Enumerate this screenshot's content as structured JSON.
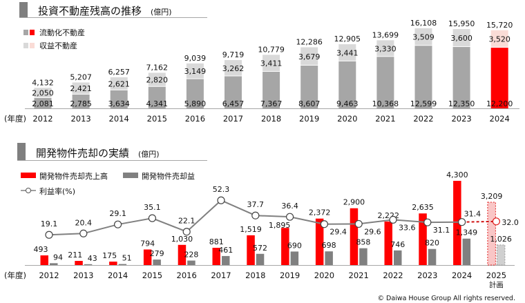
{
  "chart_data": [
    {
      "type": "bar",
      "stacked": true,
      "title": "投資不動産残高の推移",
      "unit": "(億円)",
      "xlabel": "(年度)",
      "categories": [
        "2012",
        "2013",
        "2014",
        "2015",
        "2016",
        "2017",
        "2018",
        "2019",
        "2020",
        "2021",
        "2022",
        "2023",
        "2024"
      ],
      "series": [
        {
          "name": "流動化不動産",
          "values": [
            2081,
            2785,
            3634,
            4341,
            5890,
            6457,
            7367,
            8607,
            9463,
            10368,
            12599,
            12350,
            12200
          ],
          "color": "#a6a6a6",
          "highlight_color": "#ff0000"
        },
        {
          "name": "収益不動産",
          "values": [
            2050,
            2421,
            2621,
            2820,
            3149,
            3262,
            3411,
            3679,
            3441,
            3330,
            3509,
            3600,
            3520
          ],
          "color": "#d9d9d9",
          "highlight_color": "#fadcd6"
        }
      ],
      "totals": [
        4132,
        5207,
        6257,
        7162,
        9039,
        9719,
        10779,
        12286,
        12905,
        13699,
        16108,
        15950,
        15720
      ],
      "value_labels": {
        "liquid": [
          "2,081",
          "2,785",
          "3,634",
          "4,341",
          "5,890",
          "6,457",
          "7,367",
          "8,607",
          "9,463",
          "10,368",
          "12,599",
          "12,350",
          "12,200"
        ],
        "rental": [
          "2,050",
          "2,421",
          "2,621",
          "2,820",
          "3,149",
          "3,262",
          "3,411",
          "3,679",
          "3,441",
          "3,330",
          "3,509",
          "3,600",
          "3,520"
        ],
        "total": [
          "4,132",
          "5,207",
          "6,257",
          "7,162",
          "9,039",
          "9,719",
          "10,779",
          "12,286",
          "12,905",
          "13,699",
          "16,108",
          "15,950",
          "15,720"
        ]
      },
      "highlighted_category": "2024",
      "grid": false,
      "legend_position": "top-left"
    },
    {
      "type": "bar+line",
      "title": "開発物件売却の実績",
      "unit": "(億円)",
      "xlabel": "(年度)",
      "categories": [
        "2012",
        "2013",
        "2014",
        "2015",
        "2016",
        "2017",
        "2018",
        "2019",
        "2020",
        "2021",
        "2022",
        "2023",
        "2024",
        "2025"
      ],
      "category_sublabels": {
        "2025": "計画"
      },
      "series": [
        {
          "name": "開発物件売却売上高",
          "type": "bar",
          "color": "#ff0000",
          "values": [
            493,
            211,
            175,
            794,
            1030,
            881,
            1519,
            1895,
            2372,
            2900,
            2222,
            2635,
            4300,
            3209
          ],
          "labels": [
            "493",
            "211",
            "175",
            "794",
            "1,030",
            "881",
            "1,519",
            "1,895",
            "2,372",
            "2,900",
            "2,222",
            "2,635",
            "4,300",
            "3,209"
          ]
        },
        {
          "name": "開発物件売却益",
          "type": "bar",
          "color": "#808080",
          "values": [
            94,
            43,
            51,
            279,
            228,
            461,
            572,
            690,
            698,
            858,
            746,
            820,
            1349,
            1026
          ],
          "labels": [
            "94",
            "43",
            "51",
            "279",
            "228",
            "461",
            "572",
            "690",
            "698",
            "858",
            "746",
            "820",
            "1,349",
            "1,026"
          ]
        },
        {
          "name": "利益率(%)",
          "type": "line",
          "color": "#808080",
          "values": [
            19.1,
            20.4,
            29.1,
            35.1,
            22.1,
            52.3,
            37.7,
            36.4,
            29.4,
            29.6,
            33.6,
            31.1,
            31.4,
            32.0
          ],
          "labels": [
            "19.1",
            "20.4",
            "29.1",
            "35.1",
            "22.1",
            "52.3",
            "37.7",
            "36.4",
            "29.4",
            "29.6",
            "33.6",
            "31.1",
            "31.4",
            "32.0"
          ]
        }
      ],
      "plan_category": "2025",
      "plan_style": "dashed, light",
      "grid": false,
      "legend_position": "top-left"
    }
  ],
  "footer": {
    "copyright": "© Daiwa House Group All rights reserved."
  }
}
